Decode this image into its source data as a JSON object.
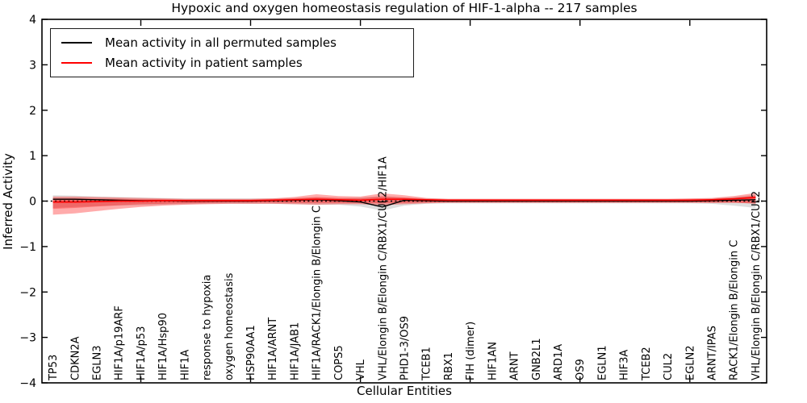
{
  "chart_data": {
    "type": "line",
    "title": "Hypoxic and oxygen homeostasis regulation of HIF-1-alpha -- 217 samples",
    "xlabel": "Cellular Entities",
    "ylabel": "Inferred Activity",
    "ylim": [
      -4,
      4
    ],
    "y_ticks": [
      "4",
      "3",
      "2",
      "1",
      "0",
      "−1",
      "−2",
      "−3",
      "−4"
    ],
    "grid": false,
    "legend_position": "upper-left",
    "axis_color": "#000000",
    "zero_line": {
      "value": 0,
      "style": "dotted",
      "color": "#000000"
    },
    "top_tick_indices": [
      4,
      9,
      14,
      19,
      24,
      29
    ],
    "categories": [
      "TP53",
      "CDKN2A",
      "EGLN3",
      "HIF1A/p19ARF",
      "HIF1A/p53",
      "HIF1A/Hsp90",
      "HIF1A",
      "response to hypoxia",
      "oxygen homeostasis",
      "HSP90AA1",
      "HIF1A/ARNT",
      "HIF1A/JAB1",
      "HIF1A/RACK1/Elongin B/Elongin C",
      "COPS5",
      "VHL",
      "VHL/Elongin B/Elongin C/RBX1/CUL2/HIF1A",
      "PHD1-3/OS9",
      "TCEB1",
      "RBX1",
      "FIH (dimer)",
      "HIF1AN",
      "ARNT",
      "GNB2L1",
      "ARD1A",
      "OS9",
      "EGLN1",
      "HIF3A",
      "TCEB2",
      "CUL2",
      "EGLN2",
      "ARNT/IPAS",
      "RACK1/Elongin B/Elongin C",
      "VHL/Elongin B/Elongin C/RBX1/CUL2"
    ],
    "series": [
      {
        "name": "Mean activity in all permuted samples",
        "color": "#000000",
        "values": [
          0.04,
          0.04,
          0.03,
          0.02,
          0.01,
          0.01,
          0.0,
          0.0,
          0.0,
          0.0,
          0.01,
          0.02,
          0.03,
          0.01,
          -0.02,
          -0.13,
          0.02,
          0.01,
          0.0,
          0.0,
          0.0,
          0.0,
          0.0,
          0.0,
          0.0,
          0.0,
          0.0,
          0.0,
          0.0,
          0.0,
          0.01,
          0.02,
          0.03
        ]
      },
      {
        "name": "Mean activity in patient samples",
        "color": "#ff0000",
        "values": [
          -0.02,
          -0.02,
          -0.01,
          0.0,
          0.0,
          0.01,
          0.01,
          0.01,
          0.01,
          0.01,
          0.02,
          0.03,
          0.04,
          0.03,
          0.02,
          0.04,
          0.04,
          0.03,
          0.02,
          0.02,
          0.02,
          0.02,
          0.02,
          0.02,
          0.02,
          0.02,
          0.02,
          0.02,
          0.02,
          0.02,
          0.03,
          0.05,
          0.08
        ]
      }
    ],
    "bands": [
      {
        "name": "permuted-spread-band",
        "color": "#999999",
        "opacity": 0.32,
        "upper": [
          0.13,
          0.12,
          0.1,
          0.09,
          0.08,
          0.07,
          0.06,
          0.06,
          0.06,
          0.06,
          0.06,
          0.07,
          0.08,
          0.07,
          0.08,
          0.11,
          0.08,
          0.06,
          0.05,
          0.05,
          0.05,
          0.05,
          0.05,
          0.05,
          0.05,
          0.05,
          0.05,
          0.05,
          0.05,
          0.05,
          0.06,
          0.09,
          0.14
        ],
        "lower": [
          -0.15,
          -0.13,
          -0.11,
          -0.1,
          -0.09,
          -0.08,
          -0.07,
          -0.06,
          -0.06,
          -0.06,
          -0.06,
          -0.07,
          -0.08,
          -0.08,
          -0.12,
          -0.21,
          -0.1,
          -0.06,
          -0.05,
          -0.05,
          -0.05,
          -0.05,
          -0.05,
          -0.05,
          -0.05,
          -0.05,
          -0.05,
          -0.05,
          -0.05,
          -0.05,
          -0.06,
          -0.1,
          -0.15
        ]
      },
      {
        "name": "patient-spread-band-outer",
        "color": "#ff0000",
        "opacity": 0.33,
        "upper": [
          0.1,
          0.1,
          0.09,
          0.08,
          0.07,
          0.06,
          0.05,
          0.05,
          0.05,
          0.05,
          0.06,
          0.09,
          0.15,
          0.11,
          0.1,
          0.17,
          0.13,
          0.07,
          0.05,
          0.05,
          0.05,
          0.05,
          0.05,
          0.05,
          0.05,
          0.05,
          0.05,
          0.05,
          0.05,
          0.06,
          0.07,
          0.11,
          0.18
        ],
        "lower": [
          -0.3,
          -0.27,
          -0.22,
          -0.17,
          -0.13,
          -0.1,
          -0.08,
          -0.07,
          -0.06,
          -0.06,
          -0.06,
          -0.07,
          -0.08,
          -0.07,
          -0.07,
          -0.09,
          -0.07,
          -0.05,
          -0.04,
          -0.04,
          -0.04,
          -0.04,
          -0.04,
          -0.04,
          -0.04,
          -0.04,
          -0.04,
          -0.04,
          -0.04,
          -0.04,
          -0.04,
          -0.04,
          -0.05
        ]
      },
      {
        "name": "patient-spread-band-inner",
        "color": "#ff0000",
        "opacity": 0.3,
        "upper": [
          0.06,
          0.06,
          0.05,
          0.05,
          0.04,
          0.04,
          0.03,
          0.03,
          0.03,
          0.03,
          0.04,
          0.06,
          0.09,
          0.07,
          0.06,
          0.1,
          0.08,
          0.04,
          0.03,
          0.03,
          0.03,
          0.03,
          0.03,
          0.03,
          0.03,
          0.03,
          0.03,
          0.03,
          0.03,
          0.04,
          0.04,
          0.07,
          0.12
        ],
        "lower": [
          -0.17,
          -0.15,
          -0.12,
          -0.09,
          -0.07,
          -0.06,
          -0.05,
          -0.04,
          -0.03,
          -0.03,
          -0.03,
          -0.04,
          -0.04,
          -0.04,
          -0.04,
          -0.05,
          -0.04,
          -0.03,
          -0.02,
          -0.02,
          -0.02,
          -0.02,
          -0.02,
          -0.02,
          -0.02,
          -0.02,
          -0.02,
          -0.02,
          -0.02,
          -0.02,
          -0.03,
          -0.03,
          -0.06
        ]
      }
    ]
  }
}
